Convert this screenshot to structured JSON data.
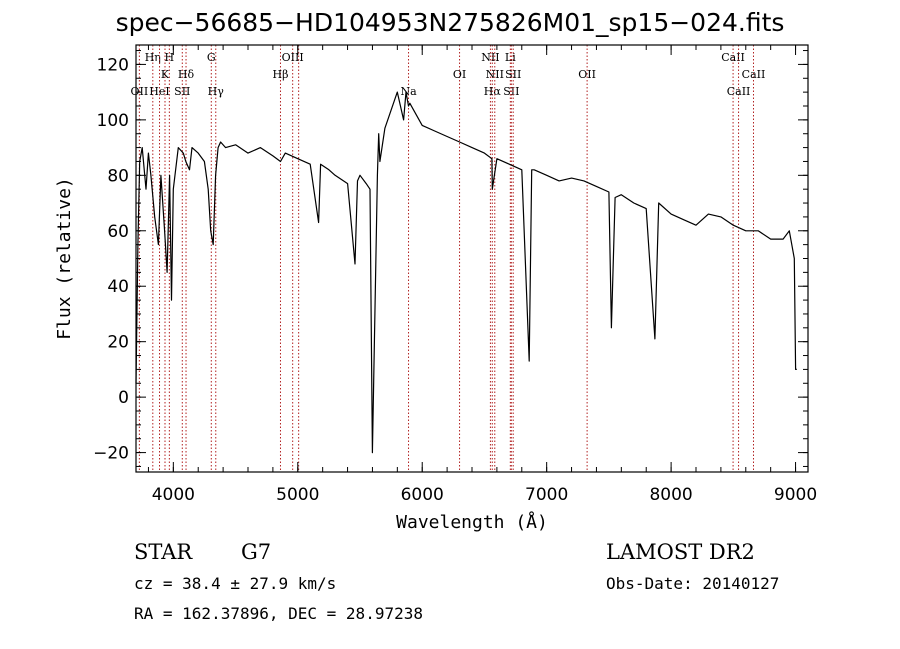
{
  "chart_data": {
    "type": "line",
    "title": "spec−56685−HD104953N275826M01_sp15−024.fits",
    "xlabel": "Wavelength (Å)",
    "ylabel": "Flux (relative)",
    "xlim": [
      3700,
      9100
    ],
    "ylim": [
      -27,
      127
    ],
    "xticks": [
      4000,
      5000,
      6000,
      7000,
      8000,
      9000
    ],
    "yticks": [
      -20,
      0,
      20,
      40,
      60,
      80,
      100,
      120
    ],
    "ytick_labels": [
      "−20",
      "0",
      "20",
      "40",
      "60",
      "80",
      "100",
      "120"
    ],
    "grid": false,
    "series": [
      {
        "x": [
          3700,
          3715,
          3730,
          3750,
          3780,
          3800,
          3820,
          3850,
          3880,
          3900,
          3930,
          3950,
          3970,
          3985,
          4000,
          4040,
          4080,
          4100,
          4130,
          4150,
          4200,
          4250,
          4280,
          4300,
          4320,
          4340,
          4360,
          4380,
          4420,
          4500,
          4600,
          4700,
          4800,
          4861,
          4900,
          5000,
          5100,
          5167,
          5183,
          5250,
          5300,
          5400,
          5460,
          5480,
          5500,
          5550,
          5580,
          5600,
          5640,
          5650,
          5660,
          5700,
          5800,
          5850,
          5870,
          5890,
          5900,
          5950,
          6000,
          6100,
          6200,
          6300,
          6400,
          6500,
          6560,
          6563,
          6600,
          6700,
          6800,
          6860,
          6880,
          6900,
          7000,
          7100,
          7200,
          7300,
          7400,
          7500,
          7520,
          7550,
          7600,
          7700,
          7800,
          7870,
          7900,
          8000,
          8100,
          8200,
          8300,
          8400,
          8500,
          8600,
          8700,
          8800,
          8900,
          8950,
          8990,
          9000,
          9010
        ],
        "y": [
          5,
          55,
          85,
          90,
          75,
          88,
          80,
          65,
          55,
          80,
          60,
          45,
          80,
          35,
          75,
          90,
          88,
          85,
          82,
          90,
          88,
          85,
          75,
          60,
          55,
          80,
          90,
          92,
          90,
          91,
          88,
          90,
          87,
          85,
          88,
          86,
          84,
          63,
          84,
          82,
          80,
          77,
          48,
          78,
          80,
          77,
          75,
          -20,
          80,
          95,
          85,
          97,
          110,
          100,
          110,
          105,
          106,
          102,
          98,
          96,
          94,
          92,
          90,
          88,
          86,
          75,
          86,
          84,
          82,
          13,
          82,
          82,
          80,
          78,
          79,
          78,
          76,
          74,
          25,
          72,
          73,
          70,
          68,
          21,
          70,
          66,
          64,
          62,
          66,
          65,
          62,
          60,
          60,
          57,
          57,
          60,
          50,
          10,
          10
        ]
      }
    ],
    "lines": [
      {
        "x": 3727,
        "label": "OII",
        "row": 3
      },
      {
        "x": 3835,
        "label": "Hη",
        "row": 1
      },
      {
        "x": 3889,
        "label": "HeI",
        "row": 3
      },
      {
        "x": 3933,
        "label": "K",
        "row": 2
      },
      {
        "x": 3968,
        "label": "H",
        "row": 1
      },
      {
        "x": 4072,
        "label": "SII",
        "row": 3
      },
      {
        "x": 4102,
        "label": "Hδ",
        "row": 2
      },
      {
        "x": 4305,
        "label": "G",
        "row": 1
      },
      {
        "x": 4341,
        "label": "Hγ",
        "row": 3
      },
      {
        "x": 4861,
        "label": "Hβ",
        "row": 2
      },
      {
        "x": 4959,
        "label": "OIII",
        "row": 1
      },
      {
        "x": 5007,
        "label": "",
        "row": 0
      },
      {
        "x": 5890,
        "label": "Na",
        "row": 3
      },
      {
        "x": 6300,
        "label": "OI",
        "row": 2
      },
      {
        "x": 6548,
        "label": "NII",
        "row": 1
      },
      {
        "x": 6563,
        "label": "Hα",
        "row": 3
      },
      {
        "x": 6583,
        "label": "NII",
        "row": 2
      },
      {
        "x": 6708,
        "label": "Li",
        "row": 1
      },
      {
        "x": 6716,
        "label": "SII",
        "row": 3
      },
      {
        "x": 6731,
        "label": "SII",
        "row": 2
      },
      {
        "x": 7325,
        "label": "OII",
        "row": 2
      },
      {
        "x": 8498,
        "label": "CaII",
        "row": 1
      },
      {
        "x": 8542,
        "label": "CaII",
        "row": 3
      },
      {
        "x": 8662,
        "label": "CaII",
        "row": 2
      }
    ]
  },
  "info": {
    "class": "STAR",
    "subclass": "G7",
    "cz": "cz = 38.4 ± 27.9 km/s",
    "coords": "RA = 162.37896, DEC =  28.97238",
    "survey": "LAMOST DR2",
    "obsdate": "Obs-Date: 20140127"
  }
}
